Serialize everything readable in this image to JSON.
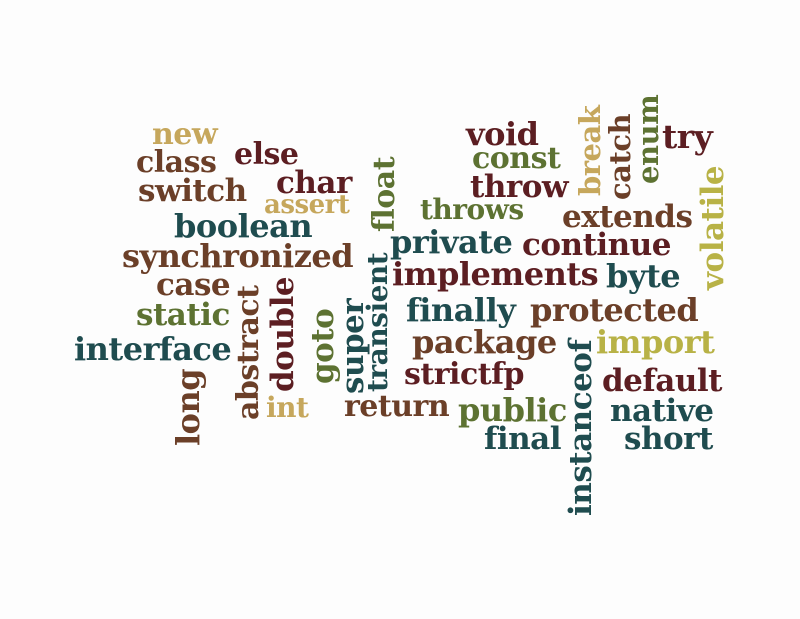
{
  "colors": {
    "teal": "#1f4c4f",
    "brown": "#6b3f28",
    "maroon": "#5c1e22",
    "olive": "#5d7232",
    "gold": "#c6a75c",
    "khaki": "#b8b246"
  },
  "words": {
    "new": "new",
    "class": "class",
    "else": "else",
    "switch": "switch",
    "char": "char",
    "assert": "assert",
    "boolean": "boolean",
    "synchronized": "synchronized",
    "case": "case",
    "static": "static",
    "interface": "interface",
    "long": "long",
    "abstract": "abstract",
    "double": "double",
    "int": "int",
    "goto": "goto",
    "super": "super",
    "transient": "transient",
    "float": "float",
    "void": "void",
    "const": "const",
    "throw": "throw",
    "throws": "throws",
    "private": "private",
    "implements": "implements",
    "finally": "finally",
    "package": "package",
    "strictfp": "strictfp",
    "return": "return",
    "public": "public",
    "final": "final",
    "break": "break",
    "catch": "catch",
    "enum": "enum",
    "try": "try",
    "volatile": "volatile",
    "extends": "extends",
    "continue": "continue",
    "byte": "byte",
    "protected": "protected",
    "import": "import",
    "instanceof": "instanceof",
    "default": "default",
    "native": "native",
    "short": "short"
  }
}
